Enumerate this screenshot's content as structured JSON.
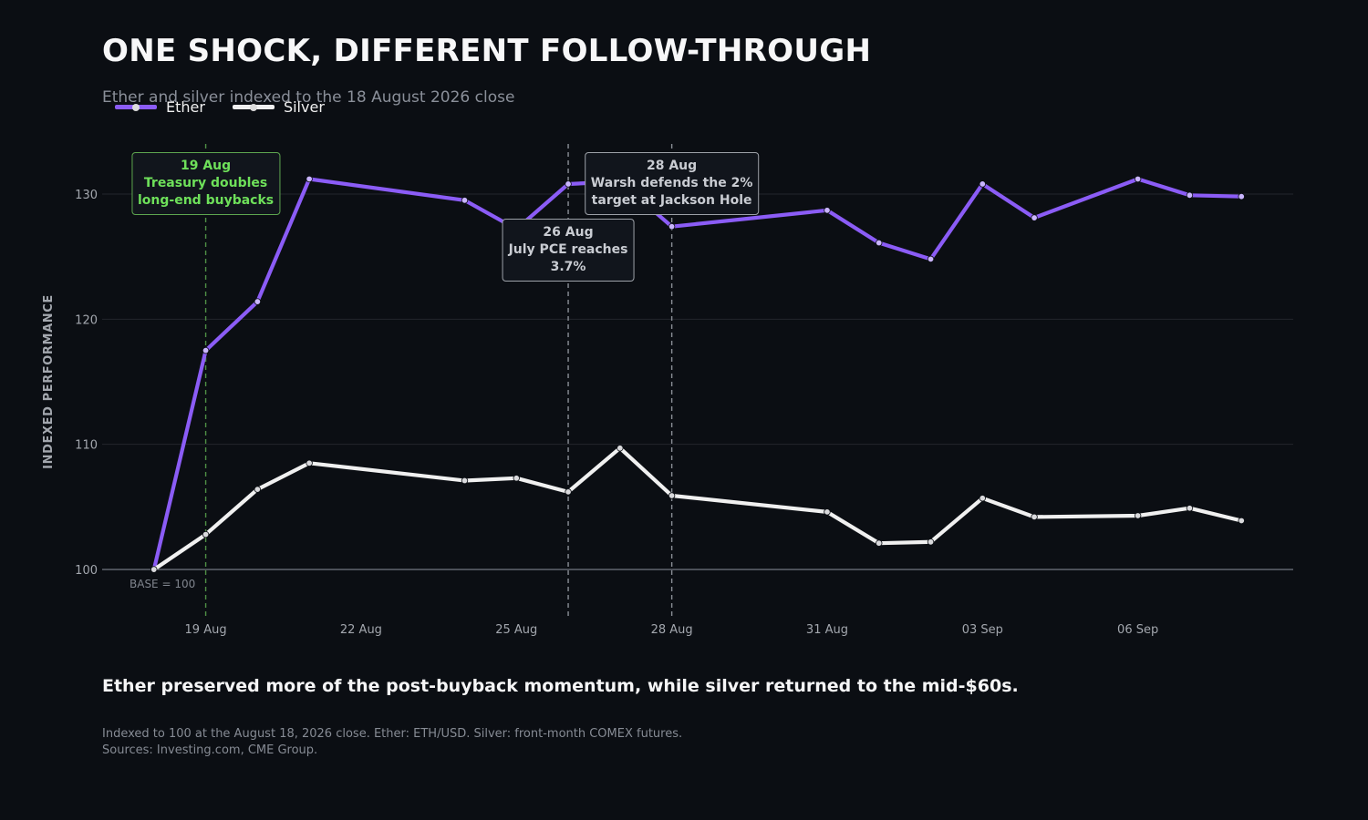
{
  "title": "ONE SHOCK, DIFFERENT FOLLOW-THROUGH",
  "subtitle": "Ether and silver indexed to the 18 August 2026 close",
  "takeaway": "Ether preserved more of the post-buyback momentum, while silver returned to the mid-$60s.",
  "footnote": {
    "line1": "Indexed to 100 at the August 18, 2026 close. Ether: ETH/USD. Silver: front-month COMEX futures.",
    "line2": "Sources: Investing.com, CME Group."
  },
  "colors": {
    "background": "#0b0e13",
    "ether": "#8b5cf6",
    "silver": "#f0f0f0",
    "annotation_green": "#6ee05a",
    "annotation_gray": "#c9ccd2",
    "grid": "#23262d",
    "baseline": "#5a5f68"
  },
  "chart_data": {
    "type": "line",
    "ylabel": "INDEXED PERFORMANCE",
    "ylim": [
      96,
      134
    ],
    "yticks": [
      100,
      110,
      120,
      130
    ],
    "xlim": [
      "2026-08-17",
      "2026-09-09"
    ],
    "xticks": [
      {
        "date": "2026-08-19",
        "label": "19 Aug"
      },
      {
        "date": "2026-08-22",
        "label": "22 Aug"
      },
      {
        "date": "2026-08-25",
        "label": "25 Aug"
      },
      {
        "date": "2026-08-28",
        "label": "28 Aug"
      },
      {
        "date": "2026-08-31",
        "label": "31 Aug"
      },
      {
        "date": "2026-09-03",
        "label": "03 Sep"
      },
      {
        "date": "2026-09-06",
        "label": "06 Sep"
      }
    ],
    "grid": true,
    "legend": "top-left",
    "baseline": {
      "value": 100,
      "label": "BASE = 100"
    },
    "series": [
      {
        "name": "Ether",
        "color": "#8b5cf6",
        "points": [
          [
            "2026-08-18",
            100.0
          ],
          [
            "2026-08-19",
            117.5
          ],
          [
            "2026-08-20",
            121.4
          ],
          [
            "2026-08-21",
            131.2
          ],
          [
            "2026-08-24",
            129.5
          ],
          [
            "2026-08-25",
            127.2
          ],
          [
            "2026-08-26",
            130.8
          ],
          [
            "2026-08-27",
            131.0
          ],
          [
            "2026-08-28",
            127.4
          ],
          [
            "2026-08-31",
            128.7
          ],
          [
            "2026-09-01",
            126.1
          ],
          [
            "2026-09-02",
            124.8
          ],
          [
            "2026-09-03",
            130.8
          ],
          [
            "2026-09-04",
            128.1
          ],
          [
            "2026-09-06",
            131.2
          ],
          [
            "2026-09-07",
            129.9
          ],
          [
            "2026-09-08",
            129.8
          ]
        ]
      },
      {
        "name": "Silver",
        "color": "#f0f0f0",
        "points": [
          [
            "2026-08-18",
            100.0
          ],
          [
            "2026-08-19",
            102.8
          ],
          [
            "2026-08-20",
            106.4
          ],
          [
            "2026-08-21",
            108.5
          ],
          [
            "2026-08-24",
            107.1
          ],
          [
            "2026-08-25",
            107.3
          ],
          [
            "2026-08-26",
            106.2
          ],
          [
            "2026-08-27",
            109.7
          ],
          [
            "2026-08-28",
            105.9
          ],
          [
            "2026-08-31",
            104.6
          ],
          [
            "2026-09-01",
            102.1
          ],
          [
            "2026-09-02",
            102.2
          ],
          [
            "2026-09-03",
            105.7
          ],
          [
            "2026-09-04",
            104.2
          ],
          [
            "2026-09-06",
            104.3
          ],
          [
            "2026-09-07",
            104.9
          ],
          [
            "2026-09-08",
            103.9
          ]
        ]
      }
    ],
    "annotations": [
      {
        "date": "2026-08-19",
        "style": "green",
        "lines": [
          "19 Aug",
          "Treasury doubles",
          "long-end buybacks"
        ]
      },
      {
        "date": "2026-08-26",
        "style": "gray",
        "lines": [
          "26 Aug",
          "July PCE reaches",
          "3.7%"
        ]
      },
      {
        "date": "2026-08-28",
        "style": "gray",
        "lines": [
          "28 Aug",
          "Warsh defends the 2%",
          "target at Jackson Hole"
        ]
      }
    ]
  }
}
